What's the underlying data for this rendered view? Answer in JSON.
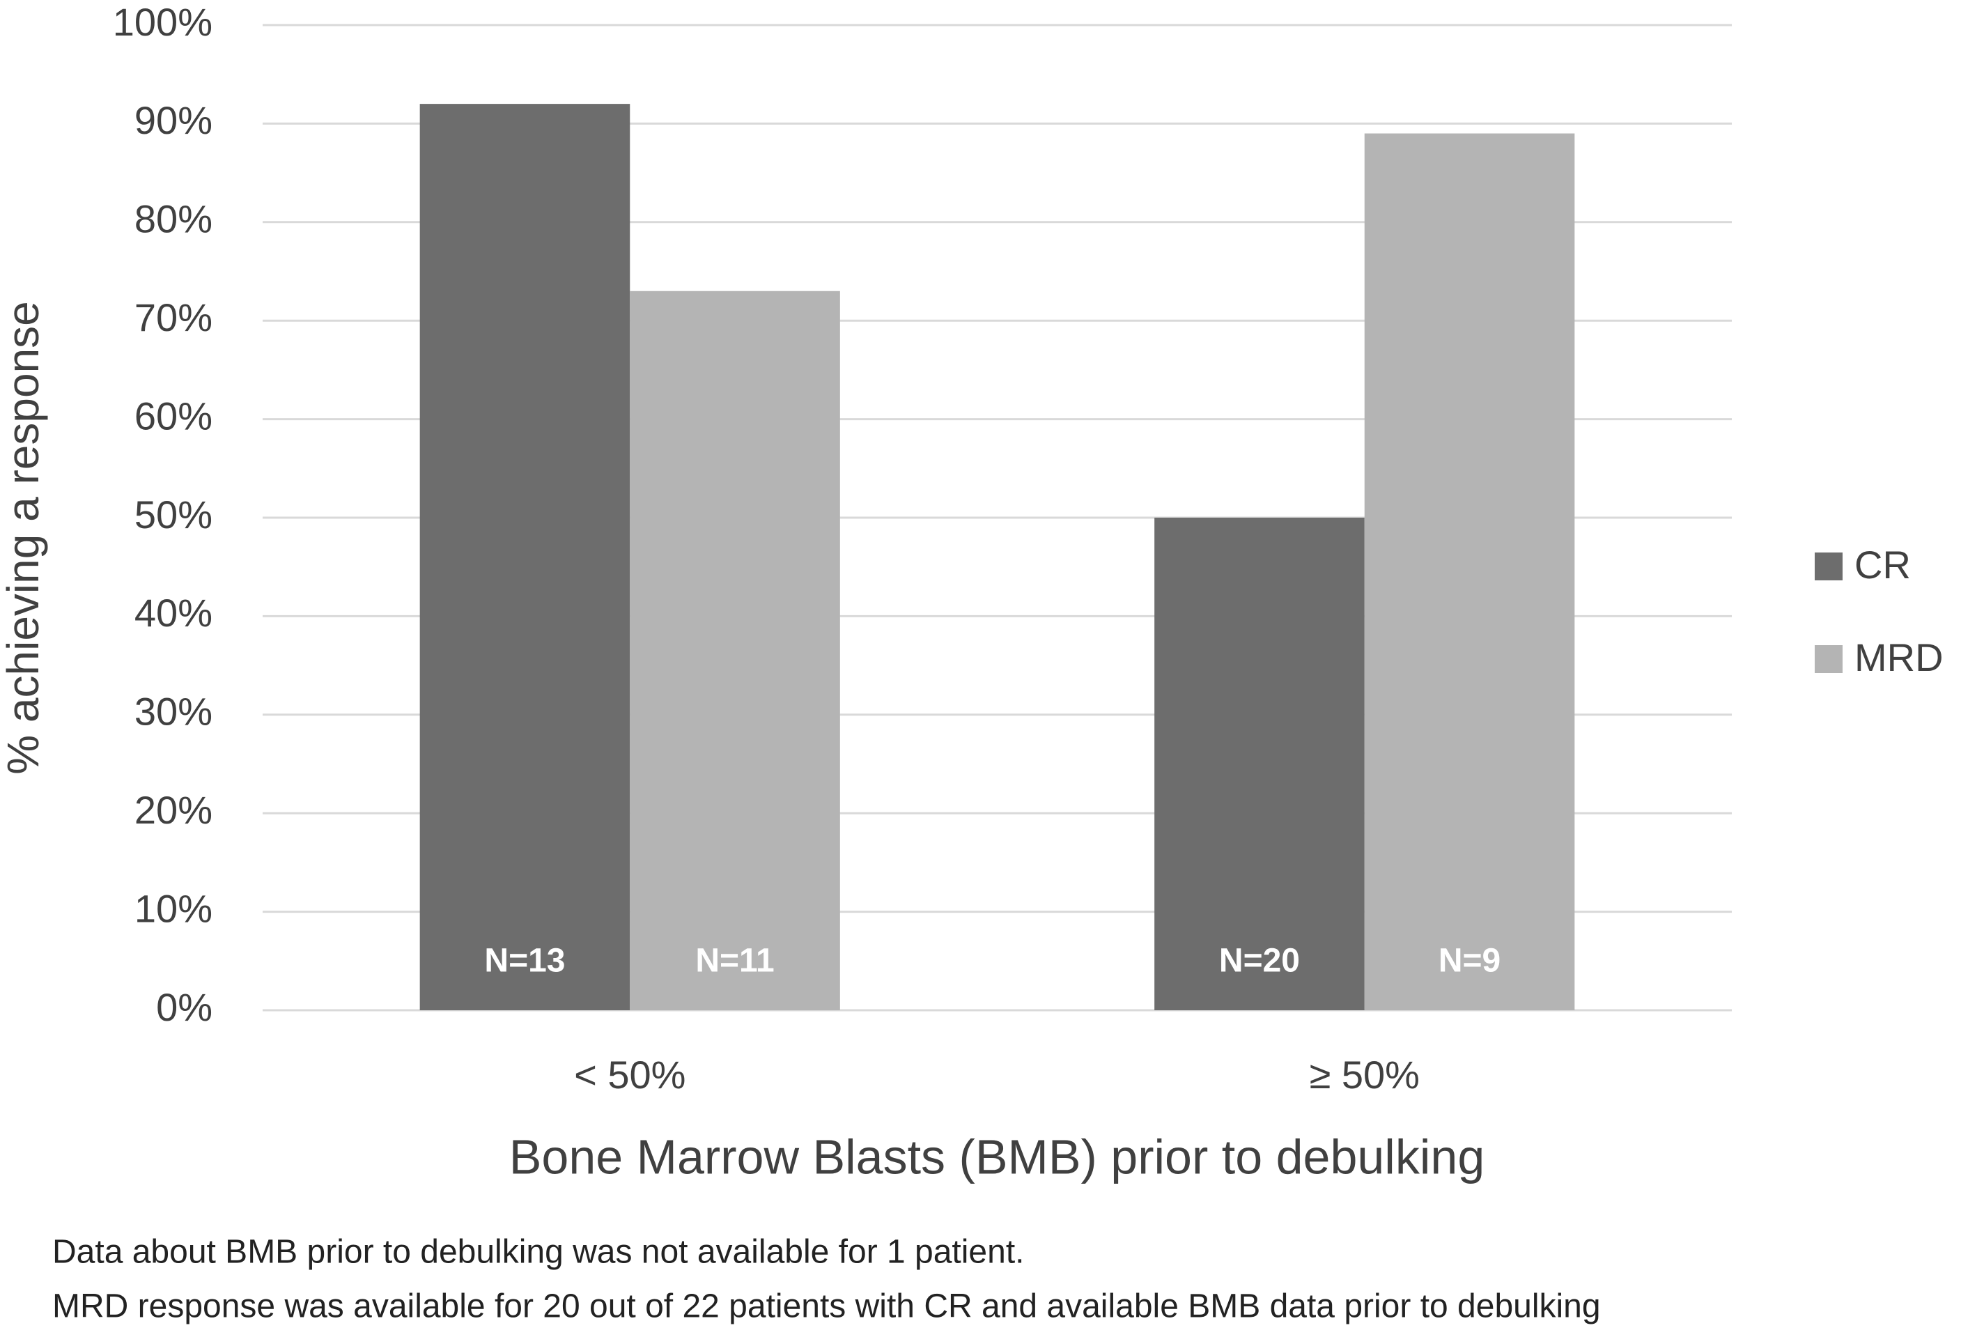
{
  "chart_data": {
    "type": "bar",
    "x_label": "Bone Marrow Blasts (BMB) prior to debulking",
    "y_label": "% achieving a response",
    "categories": [
      "< 50%",
      "≥ 50%"
    ],
    "series": [
      {
        "name": "CR",
        "color": "#6d6d6d",
        "values": [
          92,
          50
        ],
        "bar_notes": [
          "N=13",
          "N=20"
        ]
      },
      {
        "name": "MRD",
        "color": "#b4b4b4",
        "values": [
          73,
          89
        ],
        "bar_notes": [
          "N=11",
          "N=9"
        ]
      }
    ],
    "ylim": [
      0,
      100
    ],
    "yticks": [
      {
        "value": 0,
        "label": "0%"
      },
      {
        "value": 10,
        "label": "10%"
      },
      {
        "value": 20,
        "label": "20%"
      },
      {
        "value": 30,
        "label": "30%"
      },
      {
        "value": 40,
        "label": "40%"
      },
      {
        "value": 50,
        "label": "50%"
      },
      {
        "value": 60,
        "label": "60%"
      },
      {
        "value": 70,
        "label": "70%"
      },
      {
        "value": 80,
        "label": "80%"
      },
      {
        "value": 90,
        "label": "90%"
      },
      {
        "value": 100,
        "label": "100%"
      }
    ],
    "grid": true,
    "legend_position": "right",
    "footnotes": [
      "Data about BMB prior to debulking was not available for 1 patient.",
      "MRD response was available for 20 out of 22 patients with CR and available BMB data prior to debulking"
    ]
  }
}
